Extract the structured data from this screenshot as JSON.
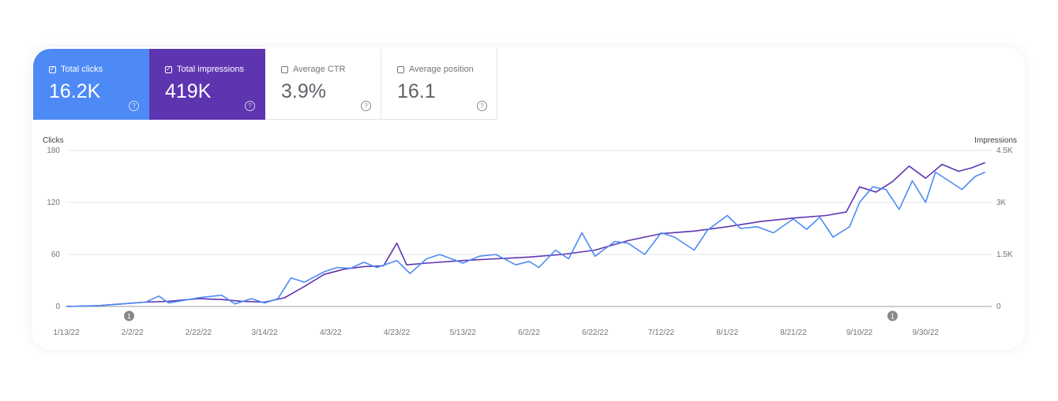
{
  "metrics": [
    {
      "label": "Total clicks",
      "value": "16.2K",
      "checked": true,
      "color": "#4e8af6"
    },
    {
      "label": "Total impressions",
      "value": "419K",
      "checked": true,
      "color": "#5e35b1"
    },
    {
      "label": "Average CTR",
      "value": "3.9%",
      "checked": false
    },
    {
      "label": "Average position",
      "value": "16.1",
      "checked": false
    }
  ],
  "colors": {
    "clicks": "#4e8af6",
    "impressions": "#5e35b1",
    "grid": "#e6e6e6",
    "axis": "#9e9e9e",
    "annotation": "#888888"
  },
  "annotation_label": "1",
  "chart_data": {
    "type": "line",
    "y_left": {
      "title": "Clicks",
      "ticks": [
        "180",
        "120",
        "60",
        "0"
      ],
      "values": [
        180,
        120,
        60,
        0
      ],
      "range": [
        0,
        180
      ]
    },
    "y_right": {
      "title": "Impressions",
      "ticks": [
        "4.5K",
        "3K",
        "1.5K",
        "0"
      ],
      "values": [
        4500,
        3000,
        1500,
        0
      ],
      "range": [
        0,
        4500
      ]
    },
    "x_ticks": [
      "1/13/22",
      "2/2/22",
      "2/22/22",
      "3/14/22",
      "4/3/22",
      "4/23/22",
      "5/13/22",
      "6/2/22",
      "6/22/22",
      "7/12/22",
      "8/1/22",
      "8/21/22",
      "9/10/22",
      "9/30/22"
    ],
    "x_range": [
      "1/13/22",
      "10/20/22"
    ],
    "grid": true,
    "annotations": [
      {
        "x": "2/1/22",
        "label": "1"
      },
      {
        "x": "9/20/22",
        "label": "1"
      }
    ],
    "series": [
      {
        "name": "Clicks",
        "axis": "left",
        "color": "#4e8af6",
        "points": [
          [
            "1/13/22",
            0
          ],
          [
            "1/23/22",
            1
          ],
          [
            "1/30/22",
            3
          ],
          [
            "2/6/22",
            5
          ],
          [
            "2/10/22",
            12
          ],
          [
            "2/13/22",
            4
          ],
          [
            "2/22/22",
            10
          ],
          [
            "3/1/22",
            13
          ],
          [
            "3/5/22",
            3
          ],
          [
            "3/10/22",
            9
          ],
          [
            "3/14/22",
            4
          ],
          [
            "3/18/22",
            9
          ],
          [
            "3/22/22",
            33
          ],
          [
            "3/26/22",
            28
          ],
          [
            "4/1/22",
            40
          ],
          [
            "4/5/22",
            45
          ],
          [
            "4/9/22",
            44
          ],
          [
            "4/13/22",
            51
          ],
          [
            "4/17/22",
            45
          ],
          [
            "4/23/22",
            53
          ],
          [
            "4/27/22",
            38
          ],
          [
            "5/2/22",
            55
          ],
          [
            "5/6/22",
            60
          ],
          [
            "5/13/22",
            50
          ],
          [
            "5/18/22",
            58
          ],
          [
            "5/23/22",
            60
          ],
          [
            "5/29/22",
            48
          ],
          [
            "6/2/22",
            52
          ],
          [
            "6/5/22",
            45
          ],
          [
            "6/10/22",
            65
          ],
          [
            "6/14/22",
            55
          ],
          [
            "6/18/22",
            85
          ],
          [
            "6/22/22",
            58
          ],
          [
            "6/28/22",
            75
          ],
          [
            "7/2/22",
            73
          ],
          [
            "7/7/22",
            60
          ],
          [
            "7/12/22",
            85
          ],
          [
            "7/16/22",
            80
          ],
          [
            "7/22/22",
            65
          ],
          [
            "7/26/22",
            88
          ],
          [
            "8/1/22",
            105
          ],
          [
            "8/5/22",
            90
          ],
          [
            "8/10/22",
            92
          ],
          [
            "8/15/22",
            85
          ],
          [
            "8/21/22",
            101
          ],
          [
            "8/25/22",
            89
          ],
          [
            "8/29/22",
            103
          ],
          [
            "9/2/22",
            80
          ],
          [
            "9/7/22",
            92
          ],
          [
            "9/10/22",
            120
          ],
          [
            "9/14/22",
            138
          ],
          [
            "9/18/22",
            135
          ],
          [
            "9/22/22",
            112
          ],
          [
            "9/26/22",
            145
          ],
          [
            "9/30/22",
            120
          ],
          [
            "10/3/22",
            155
          ],
          [
            "10/7/22",
            145
          ],
          [
            "10/11/22",
            135
          ],
          [
            "10/15/22",
            150
          ],
          [
            "10/18/22",
            155
          ]
        ]
      },
      {
        "name": "Impressions",
        "axis": "right",
        "color": "#5e35b1",
        "points": [
          [
            "1/13/22",
            0
          ],
          [
            "1/23/22",
            25
          ],
          [
            "1/30/22",
            75
          ],
          [
            "2/6/22",
            125
          ],
          [
            "2/13/22",
            150
          ],
          [
            "2/22/22",
            225
          ],
          [
            "3/1/22",
            200
          ],
          [
            "3/7/22",
            150
          ],
          [
            "3/14/22",
            125
          ],
          [
            "3/20/22",
            250
          ],
          [
            "3/26/22",
            575
          ],
          [
            "4/1/22",
            925
          ],
          [
            "4/7/22",
            1075
          ],
          [
            "4/13/22",
            1150
          ],
          [
            "4/19/22",
            1175
          ],
          [
            "4/23/22",
            1825
          ],
          [
            "4/26/22",
            1200
          ],
          [
            "5/2/22",
            1250
          ],
          [
            "5/13/22",
            1325
          ],
          [
            "5/23/22",
            1375
          ],
          [
            "6/2/22",
            1425
          ],
          [
            "6/12/22",
            1500
          ],
          [
            "6/22/22",
            1625
          ],
          [
            "7/2/22",
            1900
          ],
          [
            "7/12/22",
            2100
          ],
          [
            "7/22/22",
            2175
          ],
          [
            "8/1/22",
            2300
          ],
          [
            "8/11/22",
            2450
          ],
          [
            "8/21/22",
            2550
          ],
          [
            "8/31/22",
            2625
          ],
          [
            "9/6/22",
            2725
          ],
          [
            "9/10/22",
            3450
          ],
          [
            "9/15/22",
            3300
          ],
          [
            "9/20/22",
            3600
          ],
          [
            "9/25/22",
            4050
          ],
          [
            "9/30/22",
            3700
          ],
          [
            "10/5/22",
            4100
          ],
          [
            "10/10/22",
            3900
          ],
          [
            "10/14/22",
            4000
          ],
          [
            "10/18/22",
            4150
          ]
        ]
      }
    ]
  }
}
